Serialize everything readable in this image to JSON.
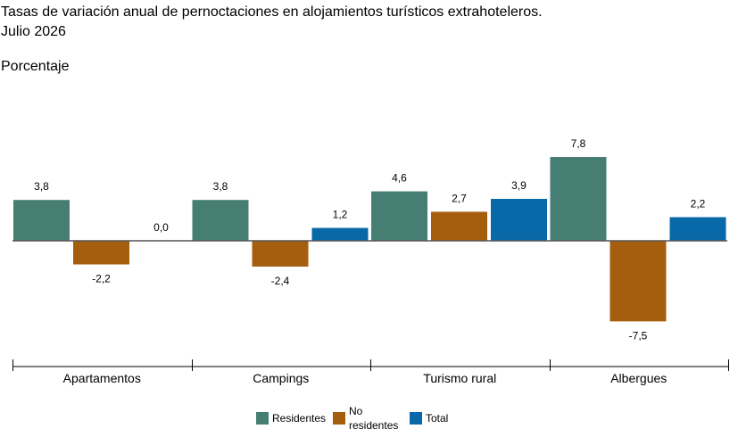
{
  "header": {
    "title_line1": "Tasas de variación anual de pernoctaciones en alojamientos turísticos extrahoteleros.",
    "title_line2": "Julio 2026",
    "ylabel": "Porcentaje"
  },
  "chart_data": {
    "type": "bar",
    "categories": [
      "Apartamentos",
      "Campings",
      "Turismo rural",
      "Albergues"
    ],
    "series": [
      {
        "name": "Residentes",
        "color": "#467e74",
        "values": [
          3.8,
          3.8,
          4.6,
          7.8
        ],
        "labels": [
          "3,8",
          "3,8",
          "4,6",
          "7,8"
        ]
      },
      {
        "name": "No residentes",
        "color": "#a55e0e",
        "values": [
          -2.2,
          -2.4,
          2.7,
          -7.5
        ],
        "labels": [
          "-2,2",
          "-2,4",
          "2,7",
          "-7,5"
        ]
      },
      {
        "name": "Total",
        "color": "#0868a8",
        "values": [
          0.0,
          1.2,
          3.9,
          2.2
        ],
        "labels": [
          "0,0",
          "1,2",
          "3,9",
          "2,2"
        ]
      }
    ],
    "ylabel": "Porcentaje",
    "grid": false,
    "legend_position": "bottom-center"
  },
  "legend": {
    "items": [
      {
        "label": "Residentes",
        "color": "#467e74"
      },
      {
        "label": "No\nresidentes",
        "color": "#a55e0e"
      },
      {
        "label": "Total",
        "color": "#0868a8"
      }
    ]
  }
}
